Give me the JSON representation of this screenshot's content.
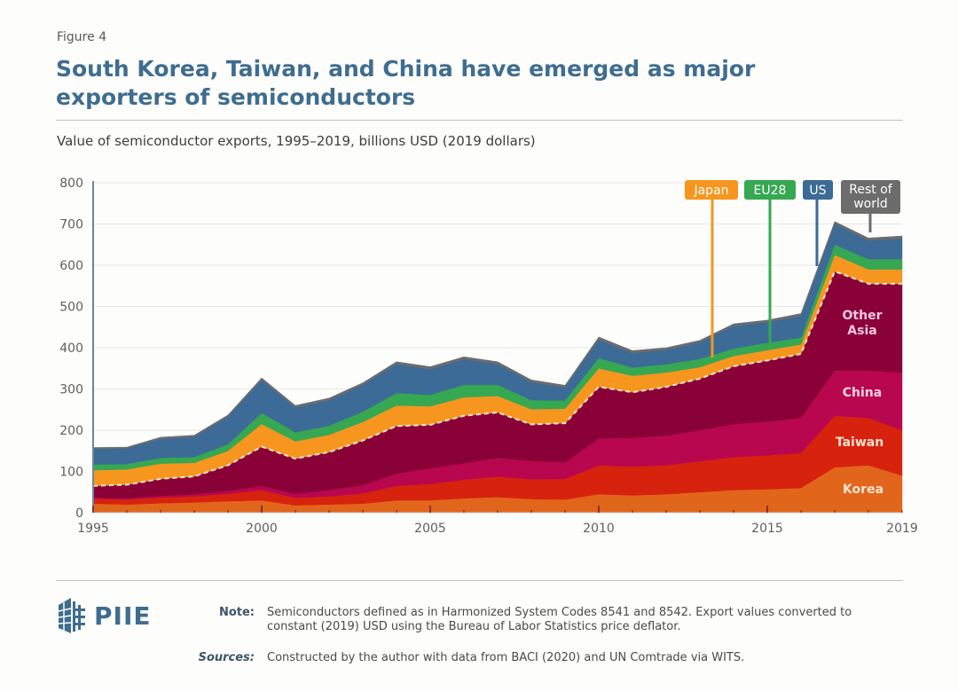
{
  "figure_label": "Figure 4",
  "title": "South Korea, Taiwan, and China have emerged as major exporters of semiconductors",
  "subtitle": "Value of semiconductor exports, 1995–2019, billions USD (2019 dollars)",
  "footer": {
    "logo_text": "PIIE",
    "note_label": "Note:",
    "note_text": "Semiconductors defined as in Harmonized System Codes 8541 and 8542. Export values converted to constant (2019) USD using the Bureau of Labor Statistics price deflator.",
    "sources_label": "Sources:",
    "sources_text": "Constructed by the author with data from BACI (2020) and UN Comtrade via WITS."
  },
  "chart_data": {
    "type": "area",
    "stacked": true,
    "title": "Value of semiconductor exports, 1995–2019, billions USD (2019 dollars)",
    "xlabel": "",
    "ylabel": "billions USD (2019 dollars)",
    "xlim": [
      1995,
      2019
    ],
    "ylim": [
      0,
      800
    ],
    "yticks": [
      0,
      100,
      200,
      300,
      400,
      500,
      600,
      700,
      800
    ],
    "xtick_labels": [
      "1995",
      "2000",
      "2005",
      "2010",
      "2015",
      "2019"
    ],
    "x": [
      1995,
      1996,
      1997,
      1998,
      1999,
      2000,
      2001,
      2002,
      2003,
      2004,
      2005,
      2006,
      2007,
      2008,
      2009,
      2010,
      2011,
      2012,
      2013,
      2014,
      2015,
      2016,
      2017,
      2018,
      2019
    ],
    "grid": true,
    "series": [
      {
        "name": "Korea",
        "color": "#e1661b",
        "label_inline": true,
        "label_color": "#fde3cf",
        "values": [
          22,
          20,
          23,
          25,
          28,
          30,
          18,
          20,
          22,
          30,
          30,
          35,
          38,
          33,
          32,
          45,
          42,
          45,
          50,
          55,
          57,
          60,
          110,
          115,
          90
        ]
      },
      {
        "name": "Taiwan",
        "color": "#d7220e",
        "label_inline": true,
        "label_color": "#fde3cf",
        "values": [
          12,
          12,
          14,
          15,
          18,
          25,
          18,
          20,
          25,
          35,
          40,
          45,
          50,
          48,
          50,
          70,
          70,
          70,
          75,
          80,
          82,
          85,
          125,
          115,
          110
        ]
      },
      {
        "name": "China",
        "color": "#b8074f",
        "label_inline": true,
        "label_color": "#fbd2e4",
        "values": [
          3,
          3,
          4,
          5,
          7,
          10,
          10,
          15,
          20,
          30,
          38,
          40,
          45,
          45,
          40,
          65,
          70,
          72,
          75,
          80,
          82,
          85,
          110,
          115,
          140
        ]
      },
      {
        "name": "Other Asia",
        "color": "#8a0137",
        "label_inline": true,
        "label_color": "#f6c8dd",
        "values": [
          28,
          33,
          41,
          43,
          62,
          95,
          85,
          92,
          108,
          115,
          105,
          115,
          110,
          88,
          95,
          125,
          110,
          118,
          125,
          140,
          148,
          155,
          240,
          210,
          215
        ]
      },
      {
        "name": "Japan",
        "color": "#f7961f",
        "label_callout": true,
        "values": [
          38,
          37,
          37,
          33,
          35,
          55,
          42,
          42,
          45,
          50,
          45,
          45,
          40,
          37,
          35,
          45,
          40,
          35,
          28,
          25,
          25,
          23,
          40,
          35,
          35
        ]
      },
      {
        "name": "EU28",
        "color": "#36a852",
        "label_callout": true,
        "values": [
          14,
          13,
          14,
          14,
          16,
          27,
          22,
          22,
          25,
          30,
          28,
          30,
          27,
          22,
          20,
          25,
          20,
          20,
          20,
          18,
          18,
          17,
          25,
          25,
          25
        ]
      },
      {
        "name": "US",
        "color": "#3b6b96",
        "label_callout": true,
        "values": [
          38,
          38,
          46,
          49,
          67,
          80,
          60,
          62,
          65,
          70,
          62,
          62,
          50,
          43,
          32,
          45,
          35,
          35,
          40,
          55,
          50,
          52,
          50,
          45,
          50
        ]
      },
      {
        "name": "Rest of world",
        "color": "#6c6c6c",
        "label_callout": true,
        "values": [
          3,
          3,
          4,
          4,
          4,
          5,
          5,
          5,
          5,
          6,
          6,
          6,
          6,
          6,
          5,
          6,
          6,
          5,
          5,
          5,
          5,
          6,
          6,
          6,
          6
        ]
      }
    ],
    "annotations": [
      {
        "text": "dashed line separates Asian exporters from the rest"
      }
    ],
    "legend": "callouts top-right"
  }
}
